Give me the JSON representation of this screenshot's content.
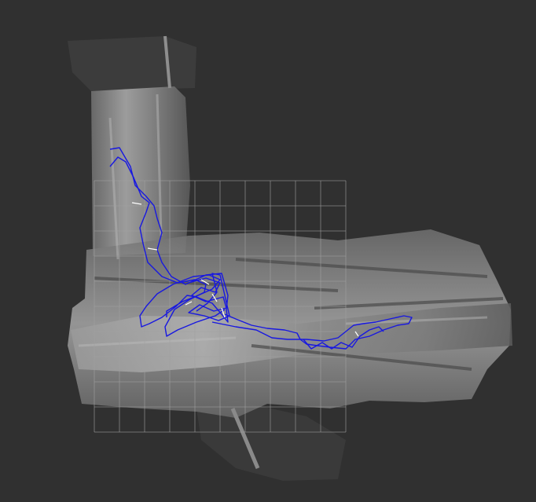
{
  "view": {
    "background_color": "#303030",
    "map_known_color": "#8a8a8a",
    "map_unknown_color": "#303030",
    "grid_color": "#a0a0a0",
    "trajectory_color": "#1818e0",
    "marker_color": "#ffffff"
  },
  "grid": {
    "cells_x": 10,
    "cells_y": 10
  }
}
